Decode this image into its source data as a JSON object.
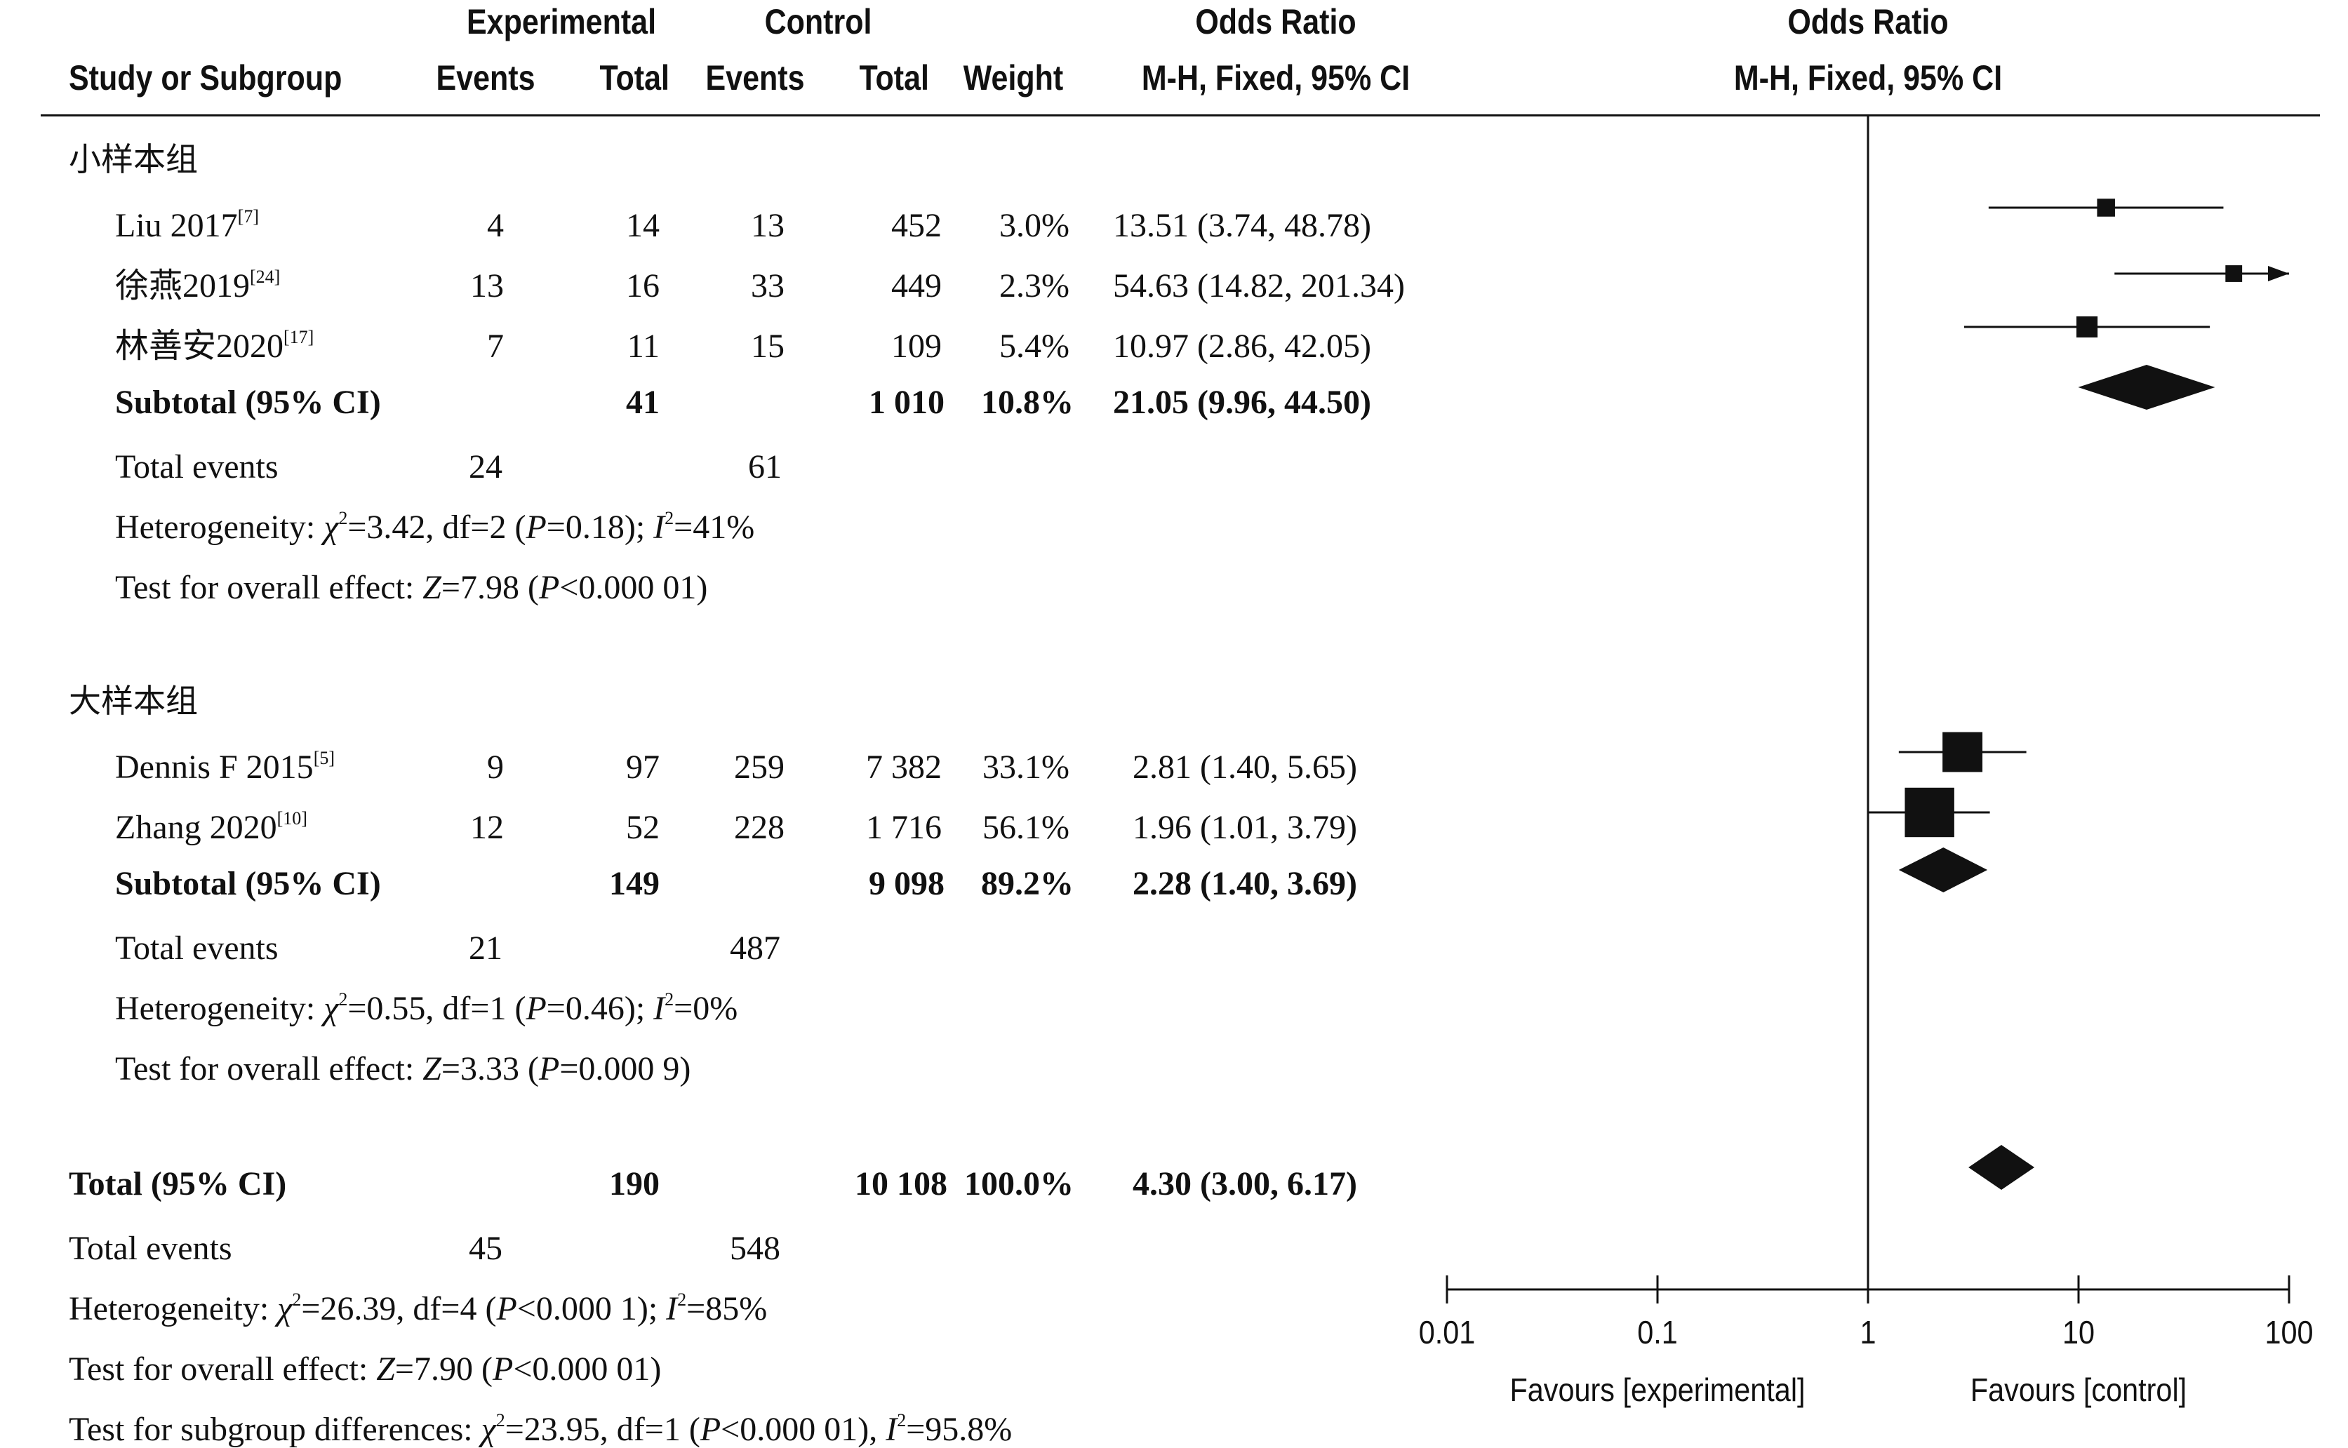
{
  "header": {
    "experimental": "Experimental",
    "control": "Control",
    "odds_ratio": "Odds Ratio",
    "study": "Study or Subgroup",
    "events": "Events",
    "total": "Total",
    "weight": "Weight",
    "method": "M-H, Fixed, 95% CI"
  },
  "groups": [
    {
      "name": "小样本组",
      "studies": [
        {
          "label": "Liu 2017",
          "ref": "[7]",
          "e_events": "4",
          "e_total": "14",
          "c_events": "13",
          "c_total": "452",
          "weight": "3.0%",
          "ci": "13.51 (3.74, 48.78)"
        },
        {
          "label": "徐燕2019",
          "ref": "[24]",
          "e_events": "13",
          "e_total": "16",
          "c_events": "33",
          "c_total": "449",
          "weight": "2.3%",
          "ci": "54.63 (14.82, 201.34)"
        },
        {
          "label": "林善安2020",
          "ref": "[17]",
          "e_events": "7",
          "e_total": "11",
          "c_events": "15",
          "c_total": "109",
          "weight": "5.4%",
          "ci": "10.97 (2.86, 42.05)"
        }
      ],
      "subtotal": {
        "label": "Subtotal (95% CI)",
        "e_total": "41",
        "c_total": "1 010",
        "weight": "10.8%",
        "ci": "21.05 (9.96, 44.50)"
      },
      "total_events": {
        "label": "Total events",
        "e": "24",
        "c": "61"
      },
      "heterogeneity": {
        "prefix": "Heterogeneity: ",
        "chi_sym": "χ",
        "chi_val": "=3.42, df=2 (",
        "p_sym": "P",
        "p_val": "=0.18); ",
        "i_sym": "I",
        "i_val": "=41%"
      },
      "overall": {
        "prefix": "Test for overall effect: ",
        "z_sym": "Z",
        "z_val": "=7.98 (",
        "p_sym": "P",
        "p_val": "<0.000 01)"
      }
    },
    {
      "name": "大样本组",
      "studies": [
        {
          "label": "Dennis F 2015",
          "ref": "[5]",
          "e_events": "9",
          "e_total": "97",
          "c_events": "259",
          "c_total": "7 382",
          "weight": "33.1%",
          "ci": "2.81 (1.40, 5.65)"
        },
        {
          "label": "Zhang 2020",
          "ref": "[10]",
          "e_events": "12",
          "e_total": "52",
          "c_events": "228",
          "c_total": "1 716",
          "weight": "56.1%",
          "ci": "1.96 (1.01, 3.79)"
        }
      ],
      "subtotal": {
        "label": "Subtotal (95% CI)",
        "e_total": "149",
        "c_total": "9 098",
        "weight": "89.2%",
        "ci": "2.28 (1.40, 3.69)"
      },
      "total_events": {
        "label": "Total events",
        "e": "21",
        "c": "487"
      },
      "heterogeneity": {
        "prefix": "Heterogeneity: ",
        "chi_sym": "χ",
        "chi_val": "=0.55, df=1 (",
        "p_sym": "P",
        "p_val": "=0.46); ",
        "i_sym": "I",
        "i_val": "=0%"
      },
      "overall": {
        "prefix": "Test for overall effect: ",
        "z_sym": "Z",
        "z_val": "=3.33 (",
        "p_sym": "P",
        "p_val": "=0.000 9)"
      }
    }
  ],
  "total": {
    "label": "Total (95% CI)",
    "e_total": "190",
    "c_total": "10 108",
    "weight": "100.0%",
    "ci": "4.30 (3.00, 6.17)"
  },
  "total_events": {
    "label": "Total events",
    "e": "45",
    "c": "548"
  },
  "heterogeneity": {
    "prefix": "Heterogeneity: ",
    "chi_sym": "χ",
    "chi_val": "=26.39, df=4 (",
    "p_sym": "P",
    "p_val": "<0.000 1); ",
    "i_sym": "I",
    "i_val": "=85%"
  },
  "overall": {
    "prefix": "Test for overall effect: ",
    "z_sym": "Z",
    "z_val": "=7.90 (",
    "p_sym": "P",
    "p_val": "<0.000 01)"
  },
  "subgroup_diff": {
    "prefix": "Test for subgroup differences: ",
    "chi_sym": "χ",
    "chi_val": "=23.95, df=1 (",
    "p_sym": "P",
    "p_val": "<0.000 01), ",
    "i_sym": "I",
    "i_val": "=95.8%"
  },
  "chart_data": {
    "type": "forest",
    "scale": "log",
    "xlim": [
      0.01,
      100
    ],
    "ticks": [
      {
        "value": 0.01,
        "label": "0.01"
      },
      {
        "value": 0.1,
        "label": "0.1"
      },
      {
        "value": 1,
        "label": "1"
      },
      {
        "value": 10,
        "label": "10"
      },
      {
        "value": 100,
        "label": "100"
      }
    ],
    "favours_left": "Favours [experimental]",
    "favours_right": "Favours [control]",
    "studies": [
      {
        "study": "Liu 2017",
        "or": 13.51,
        "lower": 3.74,
        "upper": 48.78,
        "weight": 3.0
      },
      {
        "study": "徐燕2019",
        "or": 54.63,
        "lower": 14.82,
        "upper": 201.34,
        "weight": 2.3
      },
      {
        "study": "林善安2020",
        "or": 10.97,
        "lower": 2.86,
        "upper": 42.05,
        "weight": 5.4
      },
      {
        "study": "Dennis F 2015",
        "or": 2.81,
        "lower": 1.4,
        "upper": 5.65,
        "weight": 33.1
      },
      {
        "study": "Zhang 2020",
        "or": 1.96,
        "lower": 1.01,
        "upper": 3.79,
        "weight": 56.1
      }
    ],
    "diamonds": [
      {
        "name": "Subtotal 小样本组",
        "or": 21.05,
        "lower": 9.96,
        "upper": 44.5
      },
      {
        "name": "Subtotal 大样本组",
        "or": 2.28,
        "lower": 1.4,
        "upper": 3.69
      },
      {
        "name": "Total",
        "or": 4.3,
        "lower": 3.0,
        "upper": 6.17
      }
    ]
  }
}
